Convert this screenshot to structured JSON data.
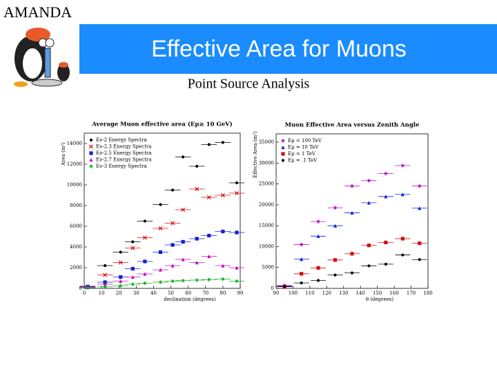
{
  "slide": {
    "brand": "AMANDA",
    "title": "Effective Area for Muons",
    "subtitle": "Point Source Analysis"
  },
  "chart_data": [
    {
      "type": "scatter",
      "title": "Average Muon effective area (Eμ≥ 10 GeV)",
      "x_label": "declination (degrees)",
      "y_label": "Area (m²)",
      "x": [
        2,
        12,
        21,
        28,
        35,
        44,
        51,
        57,
        65,
        72,
        80,
        88
      ],
      "xlim": [
        0,
        90
      ],
      "xticks": [
        0,
        10,
        20,
        30,
        40,
        50,
        60,
        70,
        80,
        90
      ],
      "ylim": [
        0,
        15000
      ],
      "yticks": [
        0,
        2000,
        4000,
        6000,
        8000,
        10000,
        12000,
        14000
      ],
      "legend": "upper left",
      "series": [
        {
          "name": "Eν-2 Energy Spectra",
          "color": "#000000",
          "marker": "circle",
          "values": [
            200,
            2200,
            3500,
            4500,
            6500,
            8100,
            9500,
            12700,
            11800,
            13900,
            14100,
            10200
          ]
        },
        {
          "name": "Eν-2.3 Energy Spectra",
          "color": "#d01010",
          "marker": "x",
          "values": [
            200,
            1300,
            2500,
            3900,
            4900,
            5800,
            6300,
            7600,
            9600,
            8800,
            9000,
            9200
          ]
        },
        {
          "name": "Eν-2.5 Energy Spectra",
          "color": "#1020d0",
          "marker": "square",
          "values": [
            150,
            600,
            1100,
            1900,
            2600,
            3500,
            4200,
            4500,
            4800,
            5100,
            5500,
            5400
          ]
        },
        {
          "name": "Eν-2.7 Energy Spectra",
          "color": "#c010c0",
          "marker": "triangle",
          "values": [
            100,
            400,
            700,
            1100,
            1400,
            1800,
            2200,
            2800,
            2500,
            3100,
            2200,
            2000
          ]
        },
        {
          "name": "Eν-3 Energy Spectra",
          "color": "#10b020",
          "marker": "star",
          "values": [
            50,
            150,
            250,
            400,
            500,
            600,
            700,
            750,
            800,
            850,
            900,
            700
          ]
        }
      ]
    },
    {
      "type": "scatter",
      "title": "Muon Effective Area versus Zenith Angle",
      "x_label": "θ (degrees)",
      "y_label": "Effective Area (m²)",
      "x": [
        95,
        105,
        115,
        125,
        135,
        145,
        155,
        165,
        175
      ],
      "xlim": [
        90,
        180
      ],
      "xticks": [
        90,
        100,
        110,
        120,
        130,
        140,
        150,
        160,
        170,
        180
      ],
      "ylim": [
        0,
        37000
      ],
      "yticks": [
        0,
        5000,
        10000,
        15000,
        20000,
        25000,
        30000,
        35000
      ],
      "legend": "upper left",
      "series": [
        {
          "name": "Eμ = 100 TeV",
          "color": "#c010c0",
          "marker": "star",
          "values": [
            700,
            10500,
            16000,
            19300,
            24500,
            25800,
            27500,
            29400,
            24500
          ]
        },
        {
          "name": "Eμ = 10 TeV",
          "color": "#1020d0",
          "marker": "triangle",
          "values": [
            600,
            7000,
            12500,
            15000,
            18100,
            20500,
            22000,
            22500,
            19200
          ]
        },
        {
          "name": "Eμ = 1 TeV",
          "color": "#d01010",
          "marker": "square",
          "values": [
            400,
            3500,
            4900,
            6800,
            8300,
            10300,
            11000,
            11900,
            10800
          ]
        },
        {
          "name": "Eμ = .1 TeV",
          "color": "#000000",
          "marker": "circle",
          "values": [
            400,
            1300,
            1900,
            3200,
            3700,
            5400,
            5800,
            8000,
            6900
          ]
        }
      ]
    }
  ]
}
